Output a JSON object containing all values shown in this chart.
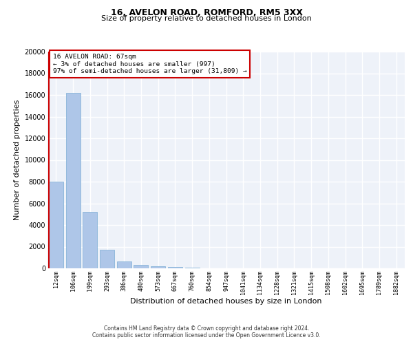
{
  "title1": "16, AVELON ROAD, ROMFORD, RM5 3XX",
  "title2": "Size of property relative to detached houses in London",
  "xlabel": "Distribution of detached houses by size in London",
  "ylabel": "Number of detached properties",
  "categories": [
    "12sqm",
    "106sqm",
    "199sqm",
    "293sqm",
    "386sqm",
    "480sqm",
    "573sqm",
    "667sqm",
    "760sqm",
    "854sqm",
    "947sqm",
    "1041sqm",
    "1134sqm",
    "1228sqm",
    "1321sqm",
    "1415sqm",
    "1508sqm",
    "1602sqm",
    "1695sqm",
    "1789sqm",
    "1882sqm"
  ],
  "values": [
    8000,
    16200,
    5200,
    1700,
    650,
    310,
    185,
    130,
    90,
    30,
    0,
    0,
    0,
    0,
    0,
    0,
    0,
    0,
    0,
    0,
    0
  ],
  "bar_color": "#aec6e8",
  "bar_edge_color": "#7aacd4",
  "annotation_box_color": "#cc0000",
  "annotation_text": "16 AVELON ROAD: 67sqm\n← 3% of detached houses are smaller (997)\n97% of semi-detached houses are larger (31,809) →",
  "ylim": [
    0,
    20000
  ],
  "yticks": [
    0,
    2000,
    4000,
    6000,
    8000,
    10000,
    12000,
    14000,
    16000,
    18000,
    20000
  ],
  "footer_line1": "Contains HM Land Registry data © Crown copyright and database right 2024.",
  "footer_line2": "Contains public sector information licensed under the Open Government Licence v3.0.",
  "bg_color": "#eef2f9",
  "grid_color": "#ffffff",
  "title1_fontsize": 9,
  "title2_fontsize": 8,
  "xlabel_fontsize": 8,
  "ylabel_fontsize": 8,
  "xtick_fontsize": 6,
  "ytick_fontsize": 7,
  "footer_fontsize": 5.5
}
